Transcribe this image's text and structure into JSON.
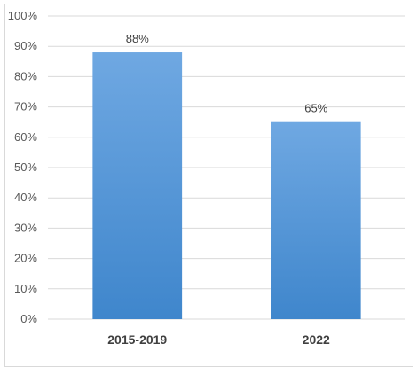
{
  "chart_data": {
    "type": "bar",
    "categories": [
      "2015-2019",
      "2022"
    ],
    "values": [
      0.88,
      0.65
    ],
    "data_labels": [
      "88%",
      "65%"
    ],
    "ylim": [
      0,
      1
    ],
    "yticks": [
      "0%",
      "10%",
      "20%",
      "30%",
      "40%",
      "50%",
      "60%",
      "70%",
      "80%",
      "90%",
      "100%"
    ],
    "grid": true,
    "legend": "none",
    "title": "",
    "xlabel": "",
    "ylabel": "",
    "colors": {
      "bar_top": "#6fa8e2",
      "bar_bottom": "#3f86cc",
      "grid": "#d9d9d9"
    }
  }
}
